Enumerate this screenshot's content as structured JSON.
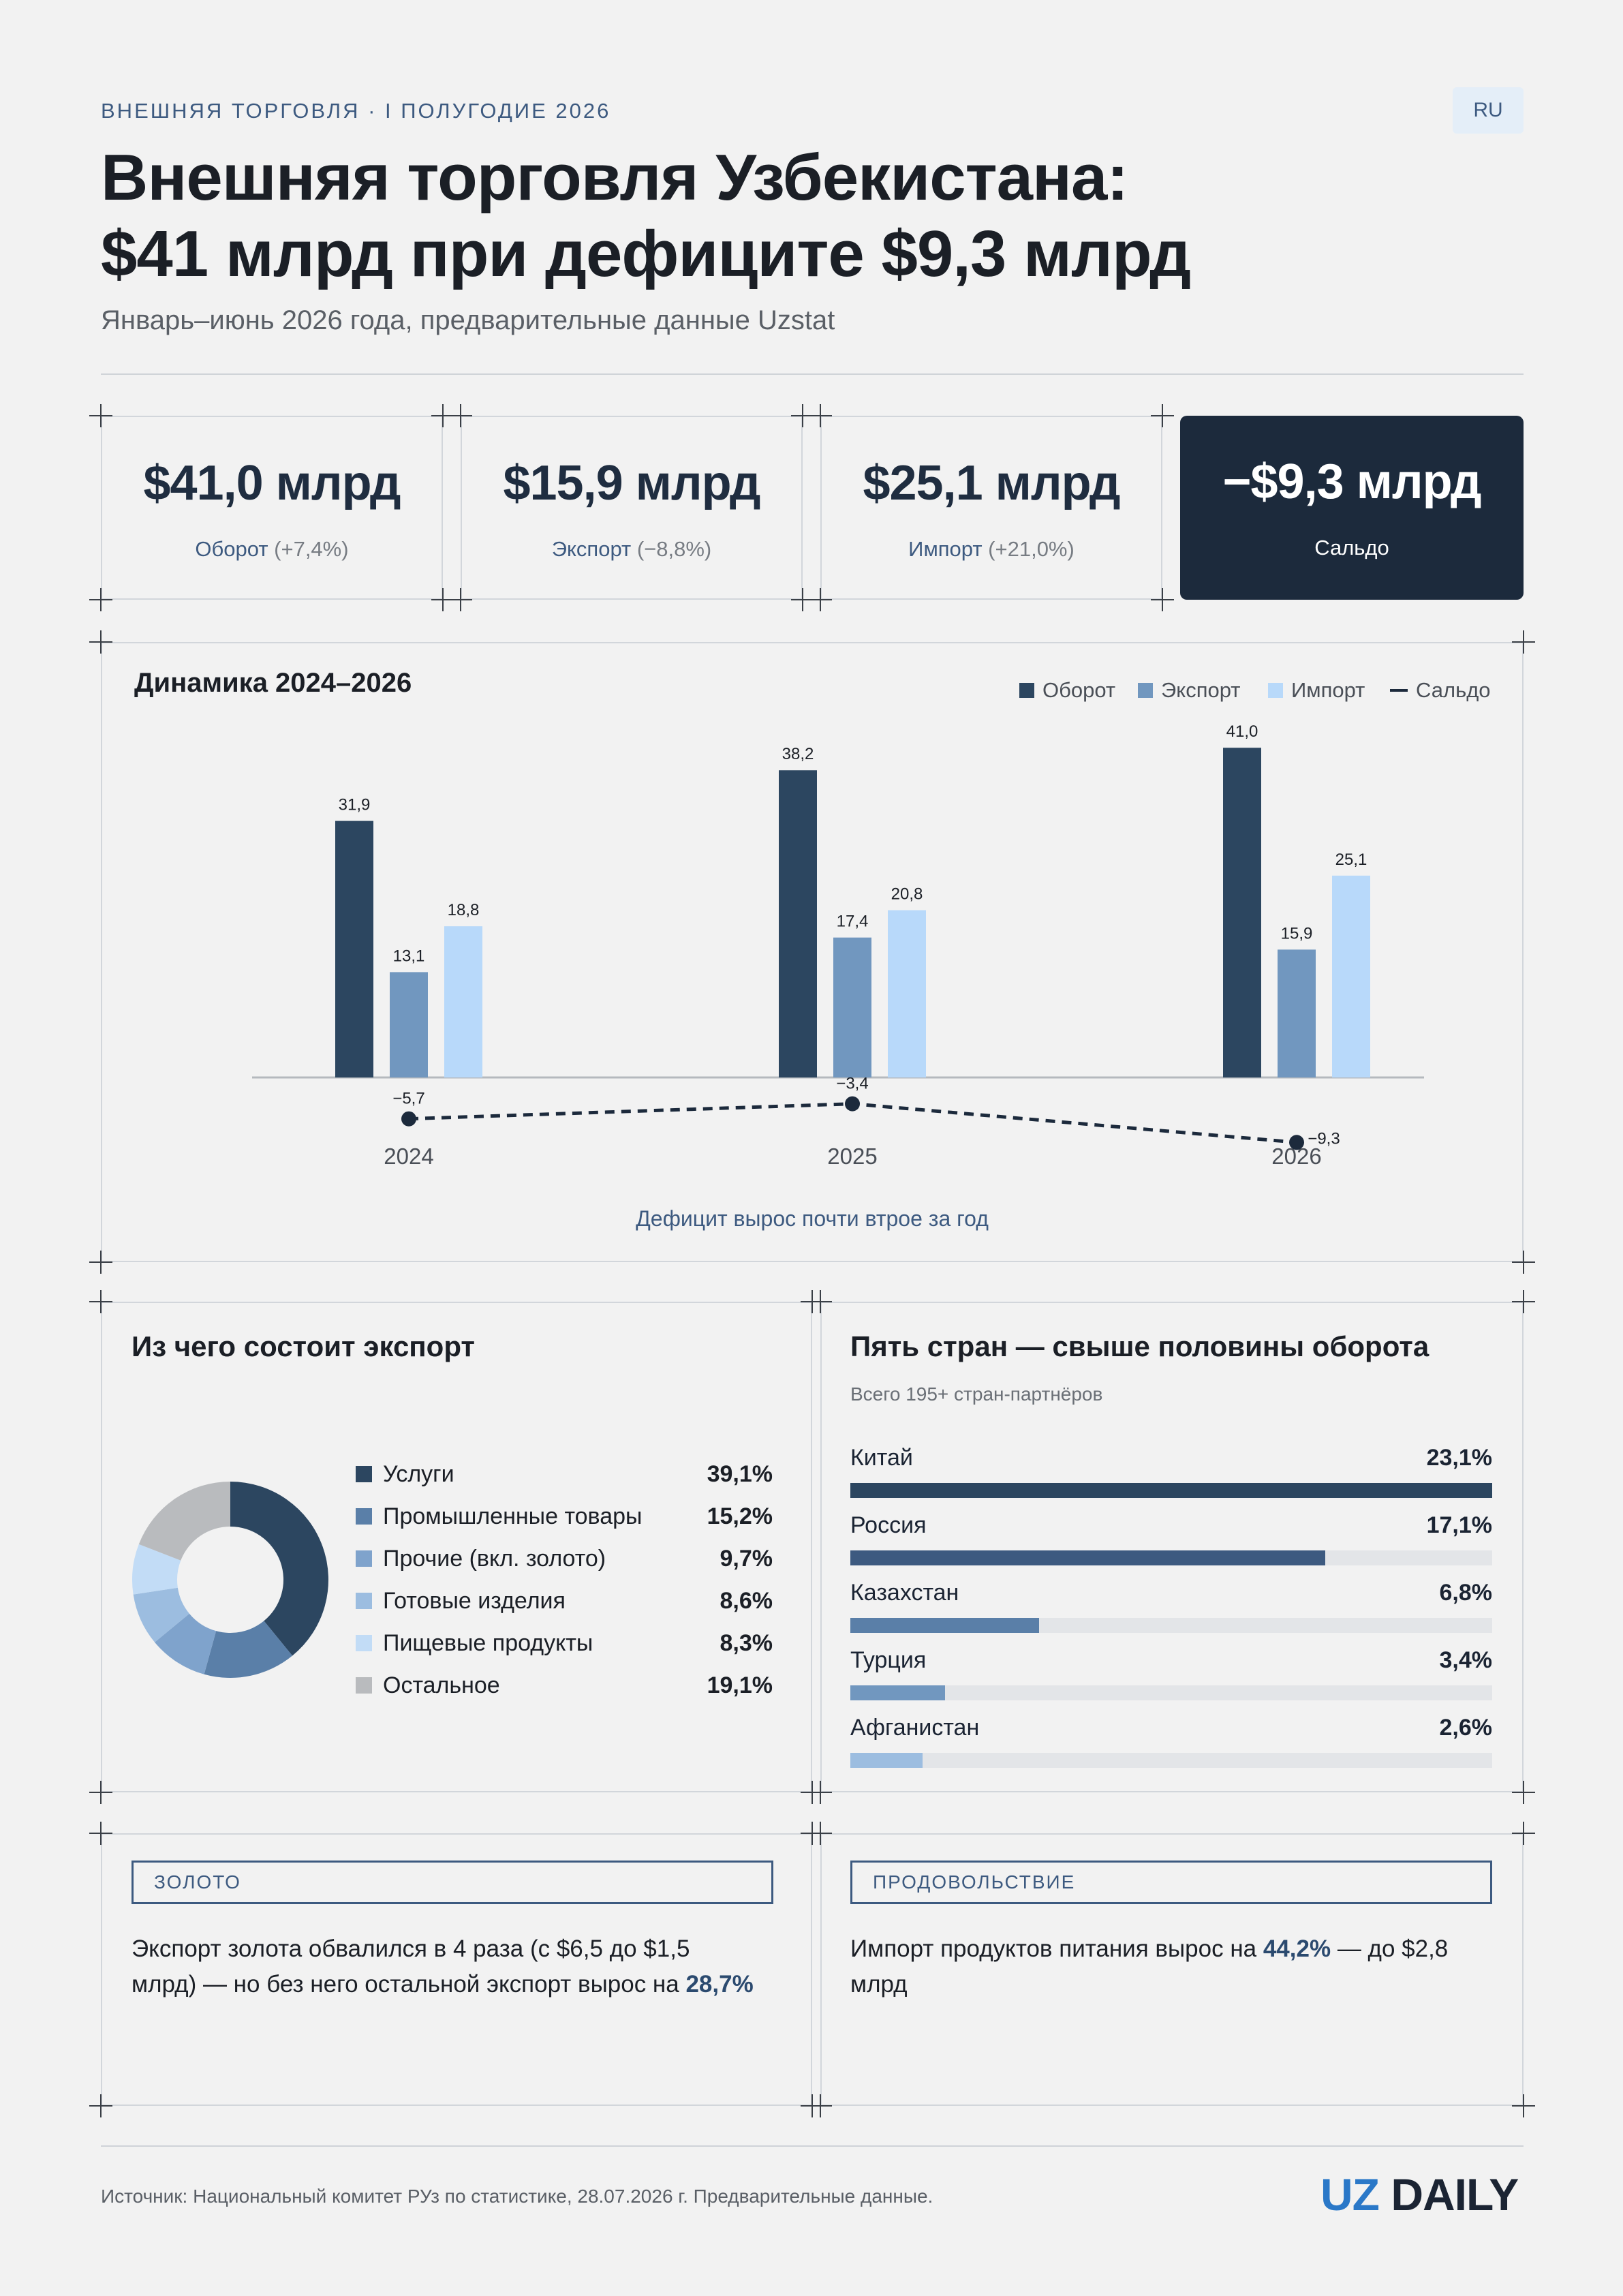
{
  "header": {
    "kicker": "ВНЕШНЯЯ ТОРГОВЛЯ · I ПОЛУГОДИЕ 2026",
    "lang": "RU",
    "title_line1": "Внешняя торговля Узбекистана:",
    "title_line2": "$41 млрд при дефиците $9,3 млрд",
    "subtitle": "Январь–июнь 2026 года, предварительные данные Uzstat"
  },
  "kpis": [
    {
      "value": "$41,0 млрд",
      "label": "Оборот",
      "delta": "(+7,4%)"
    },
    {
      "value": "$15,9 млрд",
      "label": "Экспорт",
      "delta": "(−8,8%)"
    },
    {
      "value": "$25,1 млрд",
      "label": "Импорт",
      "delta": "(+21,0%)"
    },
    {
      "value": "−$9,3 млрд",
      "label": "Сальдо",
      "delta": ""
    }
  ],
  "dynamics": {
    "title": "Динамика 2024–2026",
    "legend": [
      "Оборот",
      "Экспорт",
      "Импорт",
      "Сальдо"
    ],
    "caption": "Дефицит вырос почти втрое за год"
  },
  "colors": {
    "turnover": "#2c4660",
    "export": "#7197bf",
    "import": "#b8d9fa",
    "balance": "#1c2a3c",
    "accent": "#3d5a80"
  },
  "chart_data": [
    {
      "type": "bar",
      "title": "Динамика 2024–2026",
      "categories": [
        "2024",
        "2025",
        "2026"
      ],
      "series": [
        {
          "name": "Оборот",
          "values": [
            31.9,
            38.2,
            41.0
          ],
          "labels": [
            "31,9",
            "38,2",
            "41,0"
          ]
        },
        {
          "name": "Экспорт",
          "values": [
            13.1,
            17.4,
            15.9
          ],
          "labels": [
            "13,1",
            "17,4",
            "15,9"
          ]
        },
        {
          "name": "Импорт",
          "values": [
            18.8,
            20.8,
            25.1
          ],
          "labels": [
            "18,8",
            "20,8",
            "25,1"
          ]
        },
        {
          "name": "Сальдо",
          "type": "line",
          "values": [
            -5.7,
            -3.4,
            -9.3
          ],
          "labels": [
            "−5,7",
            "−3,4",
            "−9,3"
          ]
        }
      ],
      "legend_position": "top-right",
      "grid": false
    },
    {
      "type": "pie",
      "title": "Из чего состоит экспорт",
      "donut": true,
      "slices": [
        {
          "name": "Услуги",
          "value": 39.1,
          "label": "39,1%",
          "color": "#2c4660"
        },
        {
          "name": "Промышленные товары",
          "value": 15.2,
          "label": "15,2%",
          "color": "#5a7fa8"
        },
        {
          "name": "Прочие (вкл. золото)",
          "value": 9.7,
          "label": "9,7%",
          "color": "#7fa3cc"
        },
        {
          "name": "Готовые изделия",
          "value": 8.6,
          "label": "8,6%",
          "color": "#9cbde0"
        },
        {
          "name": "Пищевые продукты",
          "value": 8.3,
          "label": "8,3%",
          "color": "#c2dcf6"
        },
        {
          "name": "Остальное",
          "value": 19.1,
          "label": "19,1%",
          "color": "#b9bbbe"
        }
      ]
    },
    {
      "type": "bar",
      "orientation": "horizontal",
      "title": "Пять стран — свыше половины оборота",
      "subtitle": "Всего 195+ стран-партнёров",
      "categories": [
        "Китай",
        "Россия",
        "Казахстан",
        "Турция",
        "Афганистан"
      ],
      "values": [
        23.1,
        17.1,
        6.8,
        3.4,
        2.6
      ],
      "labels": [
        "23,1%",
        "17,1%",
        "6,8%",
        "3,4%",
        "2,6%"
      ],
      "colors": [
        "#2c4660",
        "#3d5a80",
        "#5a7fa8",
        "#7197bf",
        "#9cbde0"
      ]
    }
  ],
  "notes": [
    {
      "tag": "ЗОЛОТО",
      "text": "Экспорт золота обвалился в 4 раза (с $6,5 до $1,5 млрд) — но без него остальной экспорт вырос на ",
      "highlight": "28,7%",
      "after": ""
    },
    {
      "tag": "ПРОДОВОЛЬСТВИЕ",
      "text": "Импорт продуктов питания вырос на ",
      "highlight": "44,2%",
      "after": " — до $2,8 млрд"
    }
  ],
  "footer": {
    "source": "Источник: Национальный комитет РУз по статистике, 28.07.2026 г. Предварительные данные.",
    "logo_uz": "UZ",
    "logo_daily": "DAILY"
  }
}
